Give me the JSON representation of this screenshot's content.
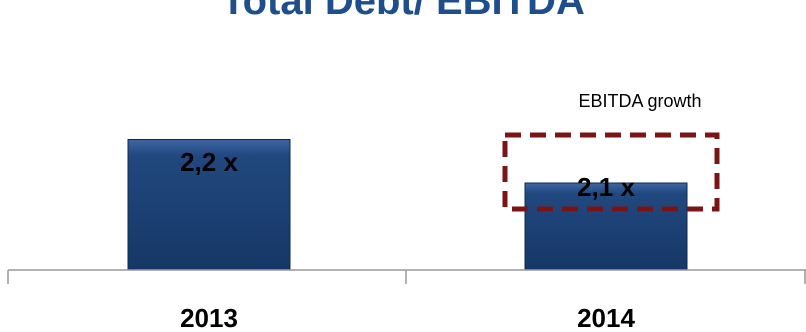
{
  "chart_data": {
    "type": "bar",
    "title": "Total Debt/ EBITDA",
    "categories": [
      "2013",
      "2014"
    ],
    "values": [
      2.2,
      2.1
    ],
    "data_labels": [
      "2,2 x",
      "2,1 x"
    ],
    "annotation": {
      "text": "EBITDA growth",
      "category": "2014",
      "dashed_box_color": "#7b1414"
    },
    "xlabel": "",
    "ylabel": "",
    "ylim": [
      1.9,
      2.3
    ],
    "grid": false,
    "legend": "none",
    "colors": {
      "bar": "#1a3f73",
      "bar_highlight": "#3e67a3",
      "title": "#1f4e8c",
      "axis": "#999999"
    }
  }
}
